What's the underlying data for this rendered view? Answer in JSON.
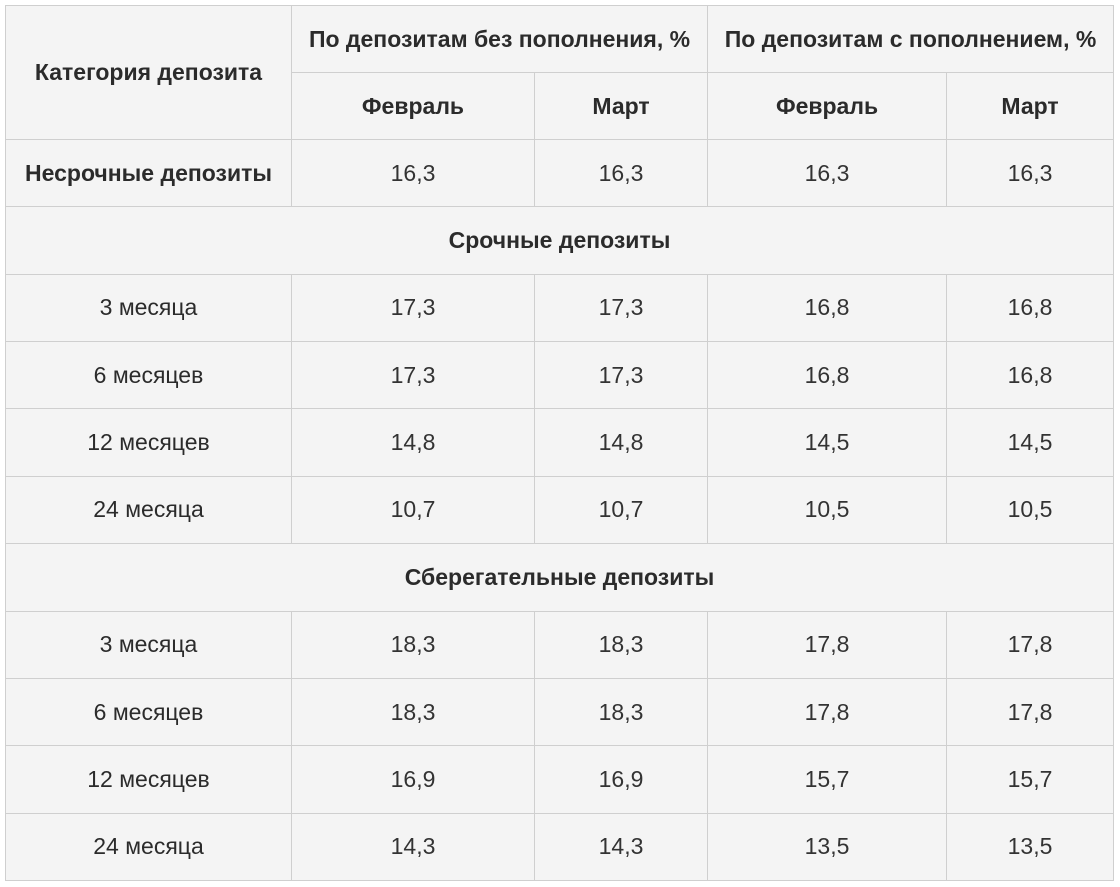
{
  "table": {
    "header": {
      "category": "Категория депозита",
      "group_no_topup": "По депозитам без пополнения, %",
      "group_with_topup": "По депозитам с пополнением, %",
      "months": [
        "Февраль",
        "Март",
        "Февраль",
        "Март"
      ]
    },
    "demand": {
      "label": "Несрочные депозиты",
      "values": [
        "16,3",
        "16,3",
        "16,3",
        "16,3"
      ]
    },
    "sections": [
      {
        "title": "Срочные депозиты",
        "rows": [
          {
            "label": "3 месяца",
            "values": [
              "17,3",
              "17,3",
              "16,8",
              "16,8"
            ]
          },
          {
            "label": "6 месяцев",
            "values": [
              "17,3",
              "17,3",
              "16,8",
              "16,8"
            ]
          },
          {
            "label": "12 месяцев",
            "values": [
              "14,8",
              "14,8",
              "14,5",
              "14,5"
            ]
          },
          {
            "label": "24 месяца",
            "values": [
              "10,7",
              "10,7",
              "10,5",
              "10,5"
            ]
          }
        ]
      },
      {
        "title": "Сберегательные депозиты",
        "rows": [
          {
            "label": "3 месяца",
            "values": [
              "18,3",
              "18,3",
              "17,8",
              "17,8"
            ]
          },
          {
            "label": "6 месяцев",
            "values": [
              "18,3",
              "18,3",
              "17,8",
              "17,8"
            ]
          },
          {
            "label": "12 месяцев",
            "values": [
              "16,9",
              "16,9",
              "15,7",
              "15,7"
            ]
          },
          {
            "label": "24 месяца",
            "values": [
              "14,3",
              "14,3",
              "13,5",
              "13,5"
            ]
          }
        ]
      }
    ]
  }
}
